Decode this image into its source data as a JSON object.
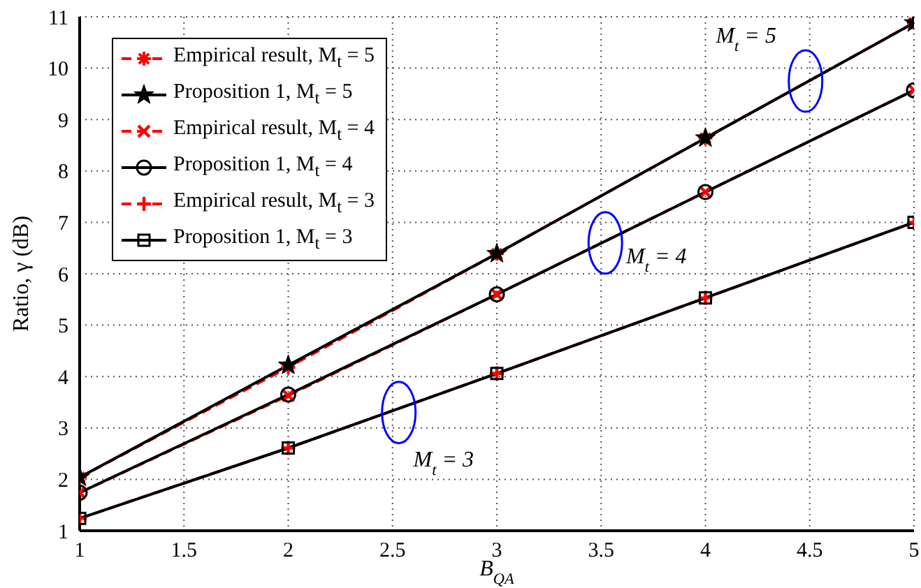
{
  "chart_data": {
    "type": "line",
    "xlabel": "B$_{QA}$",
    "ylabel": "Ratio, γ (dB)",
    "x": [
      1,
      2,
      3,
      4,
      5
    ],
    "series": [
      {
        "name": "Empirical result, M$_{t}$ = 5",
        "color": "#ff0000",
        "line_style": "dashed",
        "marker": "cross",
        "values": [
          2.04,
          4.18,
          6.39,
          8.64,
          10.88
        ]
      },
      {
        "name": "Proposition 1, M$_{t}$ = 5",
        "color": "#000000",
        "line_style": "solid",
        "marker": "star",
        "values": [
          2.04,
          4.22,
          6.39,
          8.64,
          10.88
        ]
      },
      {
        "name": "Empirical result, M$_{t}$ = 4",
        "color": "#ff0000",
        "line_style": "dashed",
        "marker": "cross",
        "values": [
          1.74,
          3.63,
          5.6,
          7.59,
          9.57
        ]
      },
      {
        "name": "Proposition 1, M$_{t}$ = 4",
        "color": "#000000",
        "line_style": "solid",
        "marker": "circle",
        "values": [
          1.74,
          3.65,
          5.6,
          7.59,
          9.57
        ]
      },
      {
        "name": "Empirical result, M$_{t}$ = 3",
        "color": "#ff0000",
        "line_style": "dashed",
        "marker": "cross",
        "values": [
          1.24,
          2.61,
          4.06,
          5.53,
          7.0
        ]
      },
      {
        "name": "Proposition 1, M$_{t}$ = 3",
        "color": "#000000",
        "line_style": "solid",
        "marker": "square",
        "values": [
          1.24,
          2.61,
          4.06,
          5.53,
          7.0
        ]
      }
    ],
    "annotations": [
      "M$_{t}$ = 5",
      "M$_{t}$ = 4",
      "M$_{t}$ = 3"
    ],
    "xlim": [
      1,
      5
    ],
    "xticks": [
      1,
      1.5,
      2,
      2.5,
      3,
      3.5,
      4,
      4.5,
      5
    ],
    "ylim": [
      1,
      11
    ],
    "yticks": [
      1,
      2,
      3,
      4,
      5,
      6,
      7,
      8,
      9,
      10,
      11
    ],
    "grid": true,
    "legend": "top left"
  }
}
